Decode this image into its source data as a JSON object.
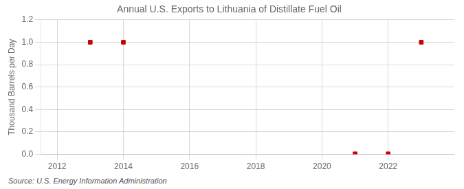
{
  "chart_data": {
    "type": "scatter",
    "title": "Annual U.S. Exports to Lithuania of Distillate Fuel Oil",
    "ylabel": "Thousand Barrels per Day",
    "annotations": [
      "Source: U.S. Energy Information Administration"
    ],
    "x": [
      2013,
      2014,
      2021,
      2022,
      2023
    ],
    "values": [
      1.0,
      1.0,
      0.005,
      0.005,
      1.0
    ],
    "color": "#cc0000",
    "marker": "square",
    "xlim": [
      2011.5,
      2024.0
    ],
    "ylim": [
      0.0,
      1.2
    ],
    "xticks": [
      2012,
      2014,
      2016,
      2018,
      2020,
      2022
    ],
    "yticks": [
      {
        "value": 0.0,
        "label": "0.0"
      },
      0.2,
      0.4,
      0.6,
      0.8,
      {
        "value": 1.0,
        "label": "1.0"
      },
      1.2
    ],
    "grid": true
  }
}
